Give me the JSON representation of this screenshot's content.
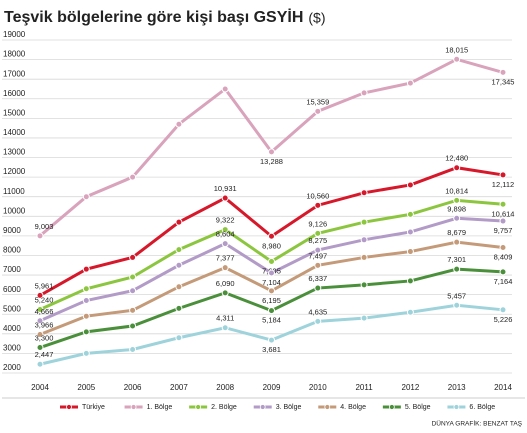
{
  "chart_data": {
    "type": "line",
    "title": "Teşvik bölgelerine göre kişi başı GSYİH",
    "unit": "($)",
    "source": "DÜNYA GRAFİK: BENZAT TAŞ",
    "categories": [
      "2004",
      "2005",
      "2006",
      "2007",
      "2008",
      "2009",
      "2010",
      "2011",
      "2012",
      "2013",
      "2014"
    ],
    "ylim": [
      2000,
      19000
    ],
    "yticks": [
      2000,
      3000,
      4000,
      5000,
      6000,
      7000,
      8000,
      9000,
      10000,
      11000,
      12000,
      13000,
      14000,
      15000,
      16000,
      17000,
      18000,
      19000
    ],
    "grid": true,
    "series": [
      {
        "name": "Türkiye",
        "color": "#d7182a",
        "values": [
          5961,
          7300,
          7900,
          9700,
          10931,
          8980,
          10560,
          11200,
          11600,
          12480,
          12112
        ],
        "value_labels": [
          "5,961",
          null,
          null,
          null,
          "10,931",
          "8,980",
          "10,560",
          null,
          null,
          "12,480",
          "12,112"
        ]
      },
      {
        "name": "1. Bölge",
        "color": "#d9a3bb",
        "values": [
          9003,
          11000,
          12000,
          14700,
          16500,
          13288,
          15359,
          16300,
          16800,
          18015,
          17345
        ],
        "value_labels": [
          "9,003",
          null,
          null,
          null,
          null,
          "13,288",
          "15,359",
          null,
          null,
          "18,015",
          "17,345"
        ]
      },
      {
        "name": "2. Bölge",
        "color": "#8cc63f",
        "values": [
          5240,
          6300,
          6900,
          8300,
          9322,
          7695,
          9126,
          9700,
          10100,
          10814,
          10614
        ],
        "value_labels": [
          "5,240",
          null,
          null,
          null,
          "9,322",
          "7,695",
          "9,126",
          null,
          null,
          "10,814",
          "10,614"
        ]
      },
      {
        "name": "3. Bölge",
        "color": "#b39bc8",
        "values": [
          4666,
          5700,
          6200,
          7500,
          8604,
          7104,
          8275,
          8800,
          9200,
          9898,
          9757
        ],
        "value_labels": [
          "4,666",
          null,
          null,
          null,
          "8,604",
          "7,104",
          "8,275",
          null,
          null,
          "9,898",
          "9,757"
        ]
      },
      {
        "name": "4. Bölge",
        "color": "#c49a78",
        "values": [
          3966,
          4900,
          5200,
          6400,
          7377,
          6195,
          7497,
          7900,
          8200,
          8679,
          8409
        ],
        "value_labels": [
          "3,966",
          null,
          null,
          null,
          "7,377",
          "6,195",
          "7,497",
          null,
          null,
          "8,679",
          "8,409"
        ]
      },
      {
        "name": "5. Bölge",
        "color": "#4a8f3a",
        "values": [
          3300,
          4100,
          4400,
          5300,
          6090,
          5184,
          6337,
          6500,
          6700,
          7301,
          7164
        ],
        "value_labels": [
          "3,300",
          null,
          null,
          null,
          "6,090",
          "5,184",
          "6,337",
          null,
          null,
          "7,301",
          "7,164"
        ]
      },
      {
        "name": "6. Bölge",
        "color": "#9ed3dc",
        "values": [
          2447,
          3000,
          3200,
          3800,
          4311,
          3681,
          4635,
          4800,
          5100,
          5457,
          5226
        ],
        "value_labels": [
          "2,447",
          null,
          null,
          null,
          "4,311",
          "3,681",
          "4,635",
          null,
          null,
          "5,457",
          "5,226"
        ]
      }
    ]
  }
}
